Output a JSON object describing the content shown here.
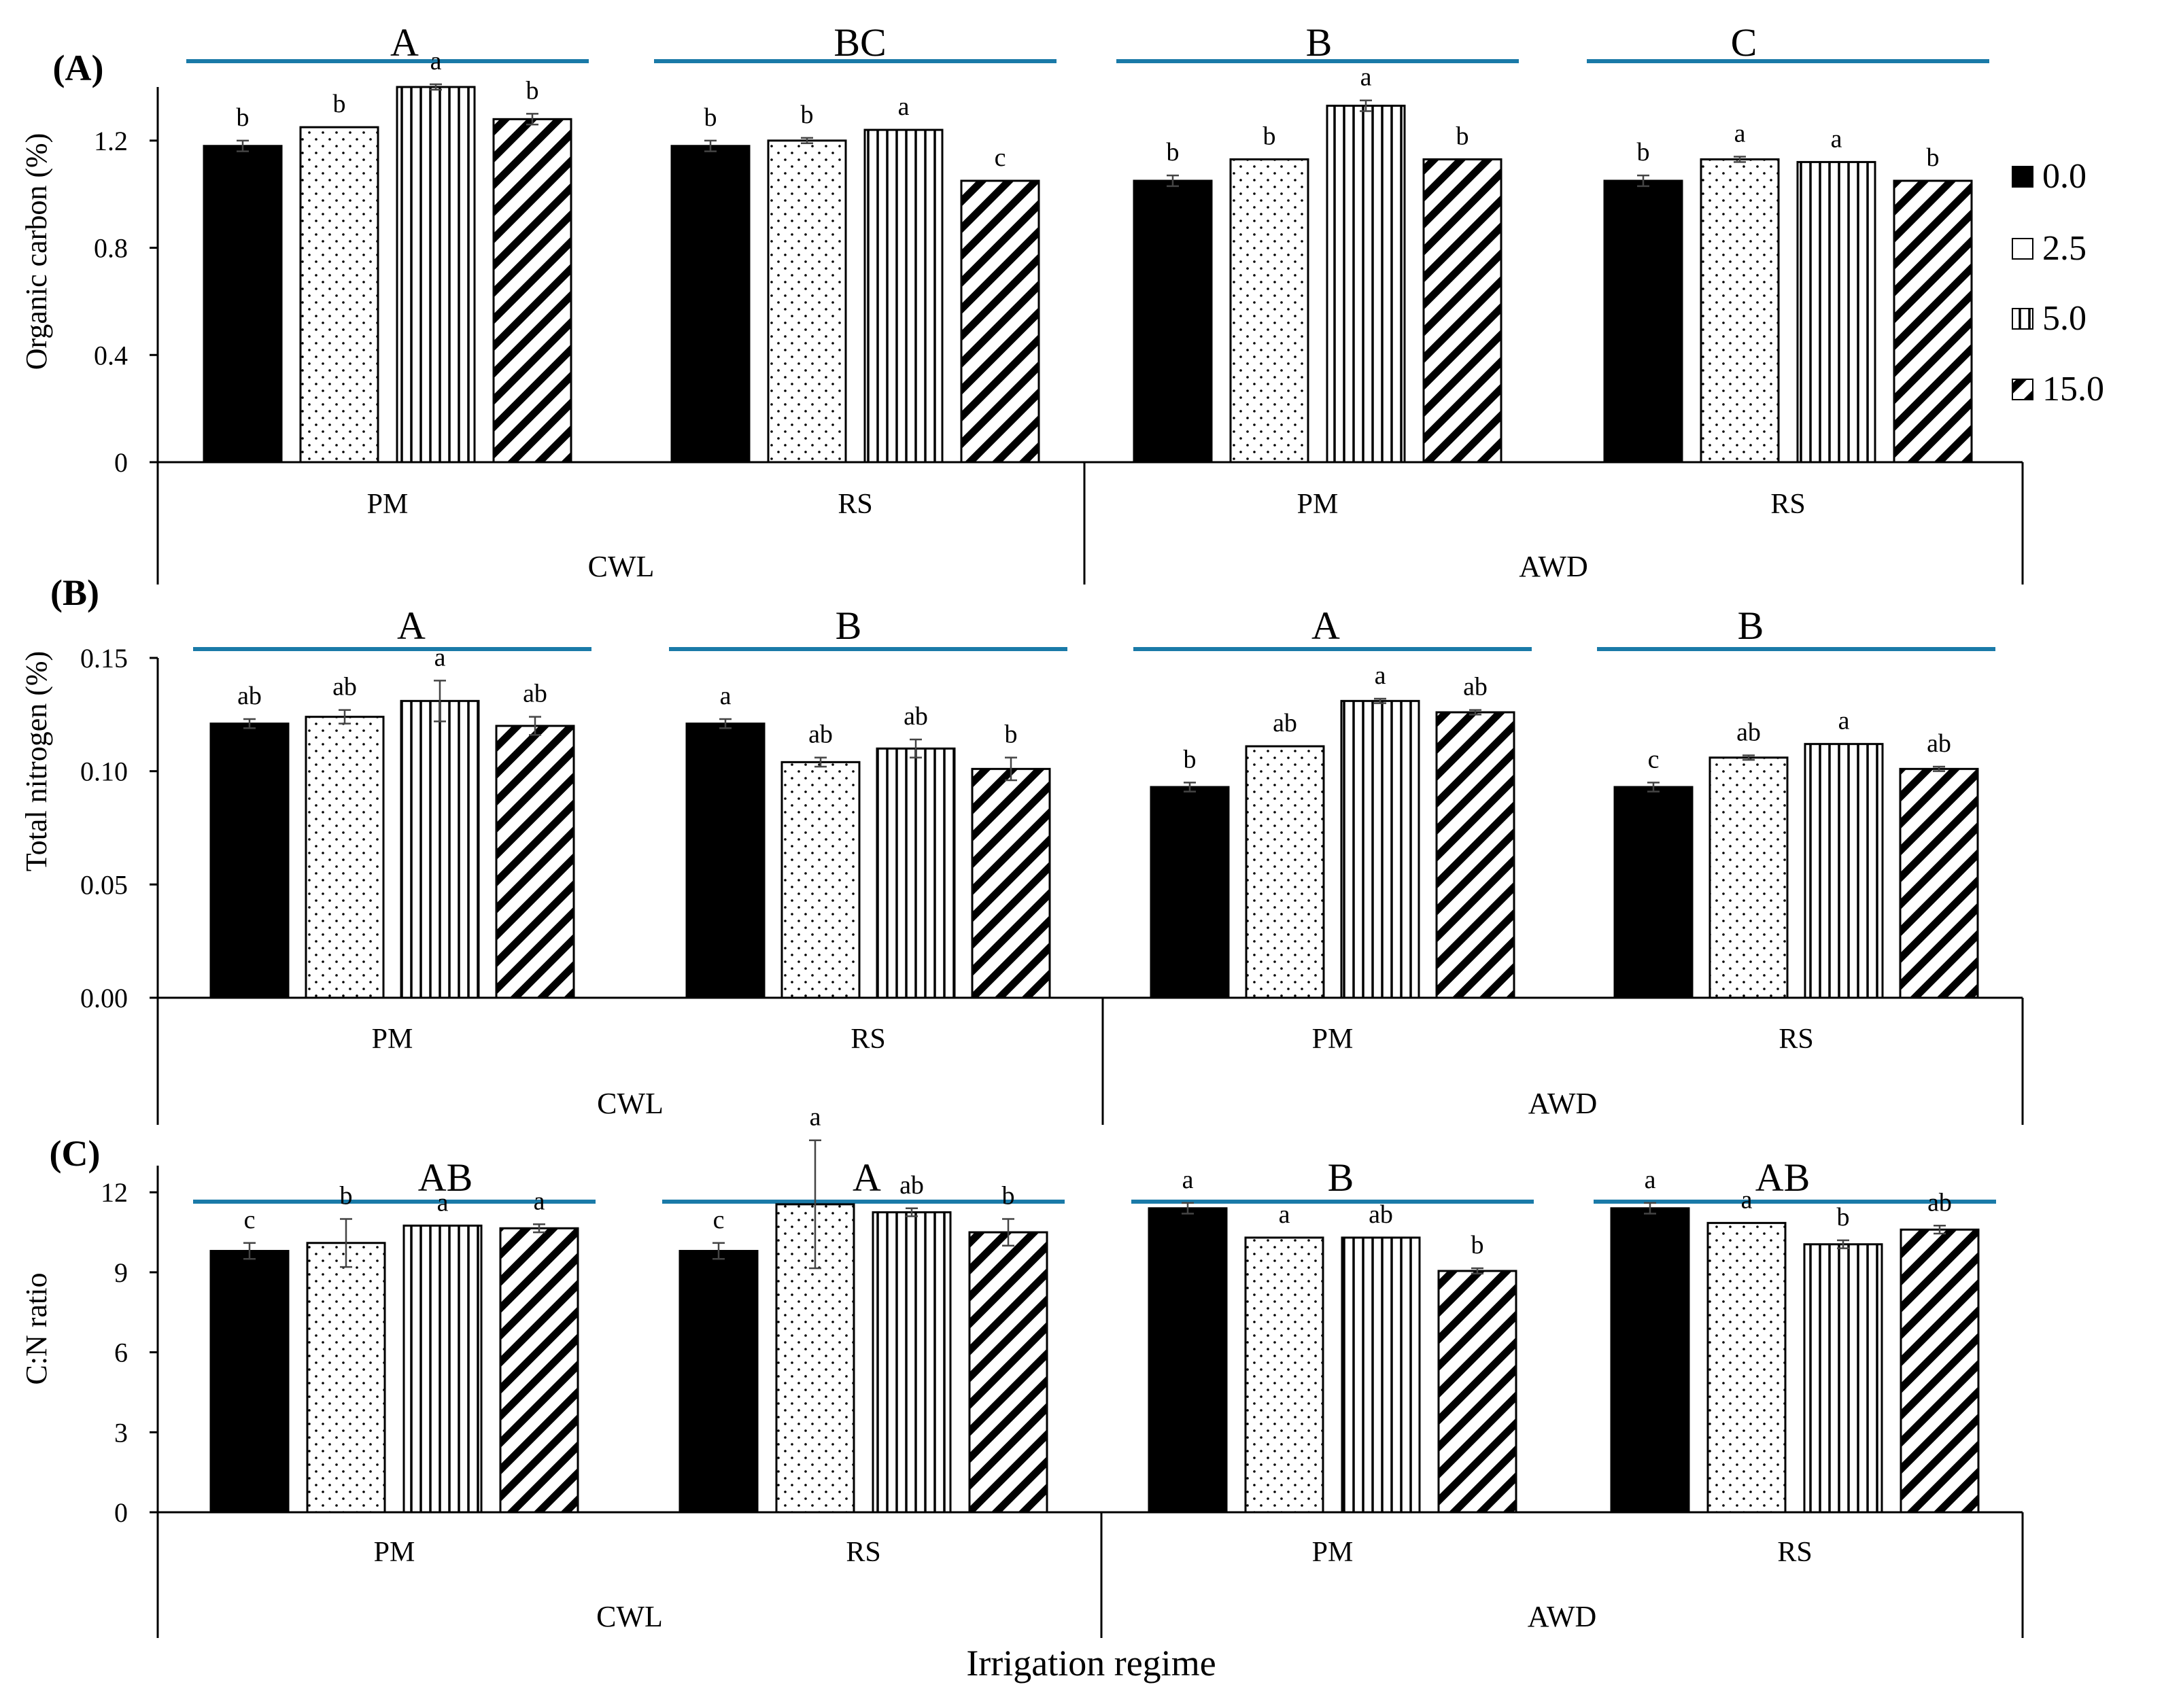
{
  "x_axis_title": "Irrigation regime",
  "series_names": [
    "0.0",
    "2.5",
    "5.0",
    "15.0"
  ],
  "colors": {
    "bar_fill_solid": "#000000",
    "group_line": "#1a7aa8",
    "stroke": "#000000"
  },
  "chart_data": [
    {
      "type": "bar",
      "panel_label": "(A)",
      "ylabel": "Organic carbon (%)",
      "ylim": [
        0,
        1.4
      ],
      "yticks": [
        "0",
        "0.4",
        "0.8",
        "1.2"
      ],
      "regimes": [
        "CWL",
        "AWD"
      ],
      "amendments": [
        "PM",
        "RS"
      ],
      "group_letters": [
        "A",
        "BC",
        "B",
        "C"
      ],
      "groups": [
        {
          "regime": "CWL",
          "amendment": "PM",
          "values": [
            1.18,
            1.25,
            1.4,
            1.28
          ],
          "errors": [
            0.02,
            0.0,
            0.01,
            0.02
          ],
          "letters": [
            "b",
            "b",
            "a",
            "b"
          ]
        },
        {
          "regime": "CWL",
          "amendment": "RS",
          "values": [
            1.18,
            1.2,
            1.24,
            1.05
          ],
          "errors": [
            0.02,
            0.01,
            0.0,
            0.0
          ],
          "letters": [
            "b",
            "b",
            "a",
            "c"
          ]
        },
        {
          "regime": "AWD",
          "amendment": "PM",
          "values": [
            1.05,
            1.13,
            1.33,
            1.13
          ],
          "errors": [
            0.02,
            0.0,
            0.02,
            0.0
          ],
          "letters": [
            "b",
            "b",
            "a",
            "b"
          ]
        },
        {
          "regime": "AWD",
          "amendment": "RS",
          "values": [
            1.05,
            1.13,
            1.12,
            1.05
          ],
          "errors": [
            0.02,
            0.01,
            0.0,
            0.0
          ],
          "letters": [
            "b",
            "a",
            "a",
            "b"
          ]
        }
      ]
    },
    {
      "type": "bar",
      "panel_label": "(B)",
      "ylabel": "Total nitrogen (%)",
      "ylim": [
        0,
        0.15
      ],
      "yticks": [
        "0.00",
        "0.05",
        "0.10",
        "0.15"
      ],
      "regimes": [
        "CWL",
        "AWD"
      ],
      "amendments": [
        "PM",
        "RS"
      ],
      "group_letters": [
        "A",
        "B",
        "A",
        "B"
      ],
      "groups": [
        {
          "regime": "CWL",
          "amendment": "PM",
          "values": [
            0.121,
            0.124,
            0.131,
            0.12
          ],
          "errors": [
            0.002,
            0.003,
            0.009,
            0.004
          ],
          "letters": [
            "ab",
            "ab",
            "a",
            "ab"
          ]
        },
        {
          "regime": "CWL",
          "amendment": "RS",
          "values": [
            0.121,
            0.104,
            0.11,
            0.101
          ],
          "errors": [
            0.002,
            0.002,
            0.004,
            0.005
          ],
          "letters": [
            "a",
            "ab",
            "ab",
            "b"
          ]
        },
        {
          "regime": "AWD",
          "amendment": "PM",
          "values": [
            0.093,
            0.111,
            0.131,
            0.126
          ],
          "errors": [
            0.002,
            0.0,
            0.001,
            0.001
          ],
          "letters": [
            "b",
            "ab",
            "a",
            "ab"
          ]
        },
        {
          "regime": "AWD",
          "amendment": "RS",
          "values": [
            0.093,
            0.106,
            0.112,
            0.101
          ],
          "errors": [
            0.002,
            0.001,
            0.0,
            0.001
          ],
          "letters": [
            "c",
            "ab",
            "a",
            "ab"
          ]
        }
      ]
    },
    {
      "type": "bar",
      "panel_label": "(C)",
      "ylabel": "C:N  ratio",
      "ylim": [
        0,
        13
      ],
      "yticks": [
        "0",
        "3",
        "6",
        "9",
        "12"
      ],
      "regimes": [
        "CWL",
        "AWD"
      ],
      "amendments": [
        "PM",
        "RS"
      ],
      "group_letters": [
        "AB",
        "A",
        "B",
        "AB"
      ],
      "groups": [
        {
          "regime": "CWL",
          "amendment": "PM",
          "values": [
            9.8,
            10.1,
            10.75,
            10.65
          ],
          "errors": [
            0.3,
            0.9,
            0.0,
            0.15
          ],
          "letters": [
            "c",
            "b",
            "a",
            "a"
          ]
        },
        {
          "regime": "CWL",
          "amendment": "RS",
          "values": [
            9.8,
            11.55,
            11.25,
            10.5
          ],
          "errors": [
            0.3,
            2.4,
            0.15,
            0.5
          ],
          "letters": [
            "c",
            "a",
            "ab",
            "b"
          ]
        },
        {
          "regime": "AWD",
          "amendment": "PM",
          "values": [
            11.4,
            10.3,
            10.3,
            9.05
          ],
          "errors": [
            0.2,
            0.0,
            0.0,
            0.1
          ],
          "letters": [
            "a",
            "a",
            "ab",
            "b"
          ]
        },
        {
          "regime": "AWD",
          "amendment": "RS",
          "values": [
            11.4,
            10.85,
            10.05,
            10.6
          ],
          "errors": [
            0.2,
            0.0,
            0.15,
            0.15
          ],
          "letters": [
            "a",
            "a",
            "b",
            "ab"
          ]
        }
      ]
    }
  ]
}
